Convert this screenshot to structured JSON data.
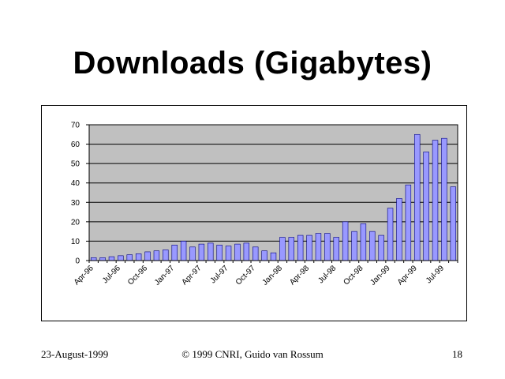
{
  "slide": {
    "title": "Downloads (Gigabytes)",
    "footer_date": "23-August-1999",
    "footer_copyright": "© 1999 CNRI, Guido van Rossum",
    "page_number": "18"
  },
  "colors": {
    "plot_background": "#c0c0c0",
    "bar_fill": "#9999ff",
    "bar_stroke": "#000080"
  },
  "chart_data": {
    "type": "bar",
    "title": "",
    "xlabel": "",
    "ylabel": "",
    "ylim": [
      0,
      70
    ],
    "yticks": [
      0,
      10,
      20,
      30,
      40,
      50,
      60,
      70
    ],
    "grid": true,
    "legend": "none",
    "categories": [
      "Apr-96",
      "May-96",
      "Jun-96",
      "Jul-96",
      "Aug-96",
      "Sep-96",
      "Oct-96",
      "Nov-96",
      "Dec-96",
      "Jan-97",
      "Feb-97",
      "Mar-97",
      "Apr-97",
      "May-97",
      "Jun-97",
      "Jul-97",
      "Aug-97",
      "Sep-97",
      "Oct-97",
      "Nov-97",
      "Dec-97",
      "Jan-98",
      "Feb-98",
      "Mar-98",
      "Apr-98",
      "May-98",
      "Jun-98",
      "Jul-98",
      "Aug-98",
      "Sep-98",
      "Oct-98",
      "Nov-98",
      "Dec-98",
      "Jan-99",
      "Feb-99",
      "Mar-99",
      "Apr-99",
      "May-99",
      "Jun-99",
      "Jul-99",
      "Aug-99"
    ],
    "tick_labels": [
      "Apr-96",
      "Jul-96",
      "Oct-96",
      "Jan-97",
      "Apr-97",
      "Jul-97",
      "Oct-97",
      "Jan-98",
      "Apr-98",
      "Jul-98",
      "Oct-98",
      "Jan-99",
      "Apr-99",
      "Jul-99"
    ],
    "values": [
      1.5,
      1.5,
      2,
      2.5,
      3,
      3.5,
      4.5,
      5,
      5.5,
      8,
      10,
      7,
      8.5,
      9,
      8,
      7.5,
      8.5,
      9,
      7,
      5,
      4,
      12,
      12,
      13,
      13,
      14,
      14,
      12,
      20,
      15,
      19,
      15,
      13,
      27,
      32,
      39,
      65,
      56,
      62,
      63,
      38
    ]
  }
}
